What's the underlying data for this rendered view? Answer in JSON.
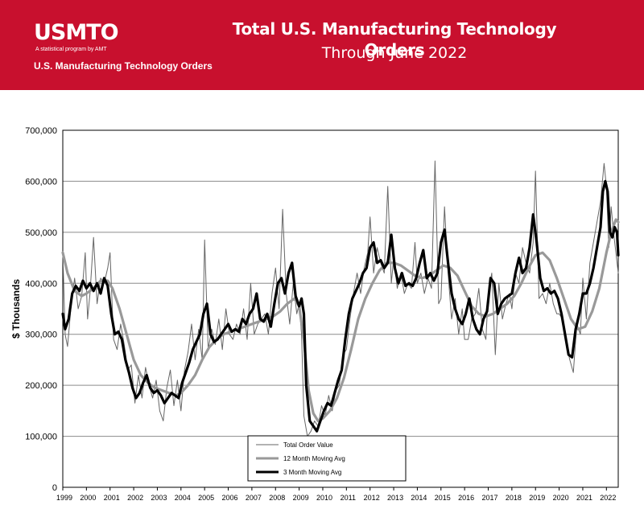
{
  "header": {
    "logo_text": "USMTO",
    "logo_tagline": "A statistical program by AMT",
    "banner_subtitle": "U.S. Manufacturing Technology Orders",
    "background_color": "#c8102e"
  },
  "chart_data": {
    "type": "line",
    "title": "Total U.S. Manufacturing Technology Orders",
    "subtitle": "Through June 2022",
    "xlabel": "",
    "ylabel": "$ Thousands",
    "ylim": [
      0,
      700000
    ],
    "y_ticks": [
      "0",
      "100,000",
      "200,000",
      "300,000",
      "400,000",
      "500,000",
      "600,000",
      "700,000"
    ],
    "x_tick_labels": [
      "1999",
      "2000",
      "2001",
      "2002",
      "2003",
      "2004",
      "2005",
      "2006",
      "2007",
      "2008",
      "2009",
      "2010",
      "2011",
      "2012",
      "2013",
      "2014",
      "2015",
      "2016",
      "2017",
      "2018",
      "2019",
      "2020",
      "2021",
      "2022"
    ],
    "x_range": [
      1999.0,
      2022.5
    ],
    "grid": "horizontal",
    "legend_position": "bottom-center",
    "series": [
      {
        "name": "Total Order Value",
        "color": "#666666",
        "style": "thin",
        "x": [
          1999.0,
          1999.1,
          1999.2,
          1999.35,
          1999.5,
          1999.65,
          1999.8,
          1999.95,
          2000.05,
          2000.15,
          2000.3,
          2000.45,
          2000.6,
          2000.75,
          2000.9,
          2001.0,
          2001.15,
          2001.3,
          2001.45,
          2001.6,
          2001.75,
          2001.9,
          2002.05,
          2002.2,
          2002.35,
          2002.5,
          2002.65,
          2002.8,
          2002.95,
          2003.1,
          2003.25,
          2003.4,
          2003.55,
          2003.7,
          2003.85,
          2004.0,
          2004.15,
          2004.3,
          2004.45,
          2004.6,
          2004.75,
          2004.9,
          2005.0,
          2005.15,
          2005.3,
          2005.45,
          2005.6,
          2005.75,
          2005.9,
          2006.05,
          2006.2,
          2006.35,
          2006.5,
          2006.65,
          2006.8,
          2006.95,
          2007.1,
          2007.25,
          2007.4,
          2007.55,
          2007.7,
          2007.85,
          2008.0,
          2008.15,
          2008.3,
          2008.45,
          2008.6,
          2008.75,
          2008.9,
          2009.0,
          2009.1,
          2009.2,
          2009.35,
          2009.5,
          2009.65,
          2009.8,
          2009.95,
          2010.1,
          2010.25,
          2010.4,
          2010.55,
          2010.7,
          2010.85,
          2011.0,
          2011.15,
          2011.3,
          2011.45,
          2011.6,
          2011.75,
          2011.9,
          2012.0,
          2012.15,
          2012.3,
          2012.45,
          2012.6,
          2012.75,
          2012.9,
          2013.0,
          2013.15,
          2013.3,
          2013.45,
          2013.6,
          2013.75,
          2013.9,
          2014.0,
          2014.15,
          2014.3,
          2014.45,
          2014.6,
          2014.75,
          2014.9,
          2015.0,
          2015.15,
          2015.3,
          2015.45,
          2015.6,
          2015.75,
          2015.9,
          2016.0,
          2016.15,
          2016.3,
          2016.45,
          2016.6,
          2016.75,
          2016.9,
          2017.0,
          2017.15,
          2017.3,
          2017.45,
          2017.6,
          2017.75,
          2017.9,
          2018.0,
          2018.15,
          2018.3,
          2018.45,
          2018.6,
          2018.75,
          2018.9,
          2019.0,
          2019.15,
          2019.3,
          2019.45,
          2019.6,
          2019.75,
          2019.9,
          2020.0,
          2020.15,
          2020.3,
          2020.45,
          2020.6,
          2020.75,
          2020.9,
          2021.0,
          2021.15,
          2021.3,
          2021.45,
          2021.6,
          2021.75,
          2021.9,
          2022.0,
          2022.1,
          2022.2,
          2022.3,
          2022.4,
          2022.5
        ],
        "values": [
          462000,
          300000,
          276000,
          355000,
          410000,
          350000,
          375000,
          460000,
          330000,
          380000,
          490000,
          360000,
          410000,
          400000,
          430000,
          460000,
          290000,
          270000,
          320000,
          280000,
          230000,
          240000,
          165000,
          220000,
          175000,
          235000,
          200000,
          175000,
          210000,
          150000,
          130000,
          195000,
          230000,
          160000,
          210000,
          150000,
          230000,
          265000,
          320000,
          250000,
          310000,
          250000,
          485000,
          270000,
          310000,
          280000,
          330000,
          270000,
          350000,
          300000,
          290000,
          320000,
          300000,
          350000,
          290000,
          400000,
          300000,
          320000,
          330000,
          340000,
          300000,
          380000,
          430000,
          350000,
          545000,
          380000,
          320000,
          400000,
          340000,
          360000,
          300000,
          140000,
          100000,
          110000,
          130000,
          120000,
          160000,
          140000,
          180000,
          150000,
          190000,
          200000,
          260000,
          270000,
          330000,
          380000,
          420000,
          380000,
          430000,
          460000,
          530000,
          420000,
          470000,
          440000,
          420000,
          590000,
          400000,
          450000,
          390000,
          420000,
          380000,
          400000,
          390000,
          480000,
          400000,
          420000,
          380000,
          410000,
          390000,
          640000,
          360000,
          370000,
          550000,
          420000,
          330000,
          370000,
          300000,
          350000,
          290000,
          290000,
          330000,
          340000,
          390000,
          310000,
          290000,
          380000,
          420000,
          260000,
          400000,
          330000,
          360000,
          380000,
          350000,
          420000,
          400000,
          470000,
          440000,
          420000,
          480000,
          620000,
          370000,
          380000,
          360000,
          400000,
          360000,
          340000,
          340000,
          330000,
          280000,
          250000,
          225000,
          320000,
          300000,
          410000,
          330000,
          440000,
          480000,
          520000,
          560000,
          635000,
          590000,
          470000,
          550000,
          500000,
          460000,
          420000
        ]
      },
      {
        "name": "12 Month Moving Avg",
        "color": "#999999",
        "style": "thick",
        "x": [
          1999.0,
          1999.2,
          1999.5,
          1999.8,
          2000.0,
          2000.3,
          2000.6,
          2000.9,
          2001.1,
          2001.4,
          2001.7,
          2002.0,
          2002.3,
          2002.6,
          2002.9,
          2003.2,
          2003.5,
          2003.8,
          2004.0,
          2004.3,
          2004.6,
          2004.9,
          2005.2,
          2005.5,
          2005.8,
          2006.1,
          2006.4,
          2006.7,
          2007.0,
          2007.3,
          2007.6,
          2007.9,
          2008.2,
          2008.5,
          2008.8,
          2009.0,
          2009.2,
          2009.4,
          2009.6,
          2009.8,
          2010.0,
          2010.3,
          2010.6,
          2010.9,
          2011.2,
          2011.5,
          2011.8,
          2012.1,
          2012.4,
          2012.7,
          2013.0,
          2013.3,
          2013.6,
          2013.9,
          2014.2,
          2014.5,
          2014.8,
          2015.1,
          2015.4,
          2015.7,
          2016.0,
          2016.3,
          2016.6,
          2016.9,
          2017.2,
          2017.5,
          2017.8,
          2018.1,
          2018.4,
          2018.7,
          2019.0,
          2019.3,
          2019.6,
          2019.9,
          2020.2,
          2020.5,
          2020.8,
          2021.1,
          2021.4,
          2021.7,
          2022.0,
          2022.2,
          2022.4,
          2022.5
        ],
        "values": [
          460000,
          420000,
          385000,
          375000,
          380000,
          390000,
          405000,
          405000,
          390000,
          350000,
          300000,
          250000,
          220000,
          205000,
          195000,
          190000,
          185000,
          180000,
          185000,
          200000,
          220000,
          250000,
          275000,
          290000,
          300000,
          305000,
          310000,
          315000,
          320000,
          325000,
          330000,
          335000,
          345000,
          360000,
          370000,
          355000,
          290000,
          190000,
          145000,
          130000,
          135000,
          150000,
          175000,
          215000,
          270000,
          330000,
          370000,
          400000,
          425000,
          440000,
          440000,
          435000,
          425000,
          415000,
          410000,
          415000,
          425000,
          435000,
          430000,
          415000,
          385000,
          355000,
          340000,
          335000,
          340000,
          350000,
          360000,
          375000,
          400000,
          430000,
          455000,
          460000,
          445000,
          410000,
          370000,
          330000,
          310000,
          315000,
          345000,
          390000,
          460000,
          500000,
          525000,
          520000
        ]
      },
      {
        "name": "3 Month Moving Avg",
        "color": "#000000",
        "style": "thick",
        "x": [
          1999.0,
          1999.1,
          1999.25,
          1999.4,
          1999.55,
          1999.7,
          1999.85,
          2000.0,
          2000.15,
          2000.3,
          2000.45,
          2000.6,
          2000.75,
          2000.9,
          2001.05,
          2001.2,
          2001.35,
          2001.5,
          2001.65,
          2001.8,
          2001.95,
          2002.1,
          2002.25,
          2002.4,
          2002.55,
          2002.7,
          2002.85,
          2003.0,
          2003.15,
          2003.3,
          2003.45,
          2003.6,
          2003.75,
          2003.9,
          2004.05,
          2004.2,
          2004.35,
          2004.5,
          2004.65,
          2004.8,
          2004.95,
          2005.1,
          2005.25,
          2005.4,
          2005.55,
          2005.7,
          2005.85,
          2006.0,
          2006.15,
          2006.3,
          2006.45,
          2006.6,
          2006.75,
          2006.9,
          2007.05,
          2007.2,
          2007.35,
          2007.5,
          2007.65,
          2007.8,
          2007.95,
          2008.1,
          2008.25,
          2008.4,
          2008.55,
          2008.7,
          2008.85,
          2009.0,
          2009.1,
          2009.2,
          2009.3,
          2009.45,
          2009.6,
          2009.75,
          2009.9,
          2010.05,
          2010.2,
          2010.35,
          2010.5,
          2010.65,
          2010.8,
          2010.95,
          2011.1,
          2011.25,
          2011.4,
          2011.55,
          2011.7,
          2011.85,
          2012.0,
          2012.15,
          2012.3,
          2012.45,
          2012.6,
          2012.75,
          2012.9,
          2013.05,
          2013.2,
          2013.35,
          2013.5,
          2013.65,
          2013.8,
          2013.95,
          2014.1,
          2014.25,
          2014.4,
          2014.55,
          2014.7,
          2014.85,
          2015.0,
          2015.15,
          2015.3,
          2015.45,
          2015.6,
          2015.75,
          2015.9,
          2016.05,
          2016.2,
          2016.35,
          2016.5,
          2016.65,
          2016.8,
          2016.95,
          2017.1,
          2017.25,
          2017.4,
          2017.55,
          2017.7,
          2017.85,
          2018.0,
          2018.15,
          2018.3,
          2018.45,
          2018.6,
          2018.75,
          2018.9,
          2019.05,
          2019.2,
          2019.35,
          2019.5,
          2019.65,
          2019.8,
          2019.95,
          2020.1,
          2020.25,
          2020.4,
          2020.55,
          2020.7,
          2020.85,
          2021.0,
          2021.15,
          2021.3,
          2021.45,
          2021.6,
          2021.75,
          2021.85,
          2021.95,
          2022.05,
          2022.15,
          2022.25,
          2022.35,
          2022.45,
          2022.5
        ],
        "values": [
          340000,
          310000,
          330000,
          380000,
          395000,
          385000,
          405000,
          390000,
          400000,
          385000,
          400000,
          380000,
          410000,
          395000,
          340000,
          300000,
          305000,
          290000,
          250000,
          225000,
          195000,
          175000,
          185000,
          205000,
          220000,
          195000,
          185000,
          190000,
          180000,
          165000,
          175000,
          185000,
          180000,
          175000,
          205000,
          225000,
          245000,
          270000,
          285000,
          300000,
          340000,
          360000,
          300000,
          285000,
          290000,
          300000,
          310000,
          320000,
          305000,
          310000,
          305000,
          330000,
          320000,
          340000,
          350000,
          380000,
          330000,
          325000,
          340000,
          315000,
          360000,
          400000,
          410000,
          380000,
          420000,
          440000,
          375000,
          355000,
          370000,
          340000,
          200000,
          130000,
          120000,
          110000,
          130000,
          150000,
          165000,
          160000,
          185000,
          210000,
          230000,
          290000,
          340000,
          370000,
          385000,
          400000,
          420000,
          430000,
          470000,
          480000,
          440000,
          445000,
          430000,
          440000,
          495000,
          430000,
          400000,
          420000,
          395000,
          400000,
          395000,
          410000,
          440000,
          465000,
          410000,
          420000,
          405000,
          420000,
          480000,
          505000,
          440000,
          380000,
          350000,
          330000,
          320000,
          340000,
          370000,
          330000,
          310000,
          300000,
          330000,
          345000,
          410000,
          400000,
          340000,
          360000,
          370000,
          375000,
          380000,
          420000,
          450000,
          420000,
          430000,
          470000,
          535000,
          480000,
          410000,
          385000,
          390000,
          380000,
          385000,
          370000,
          340000,
          300000,
          260000,
          255000,
          310000,
          340000,
          380000,
          380000,
          400000,
          430000,
          470000,
          510000,
          580000,
          600000,
          580000,
          500000,
          490000,
          510000,
          500000,
          455000
        ]
      }
    ]
  }
}
